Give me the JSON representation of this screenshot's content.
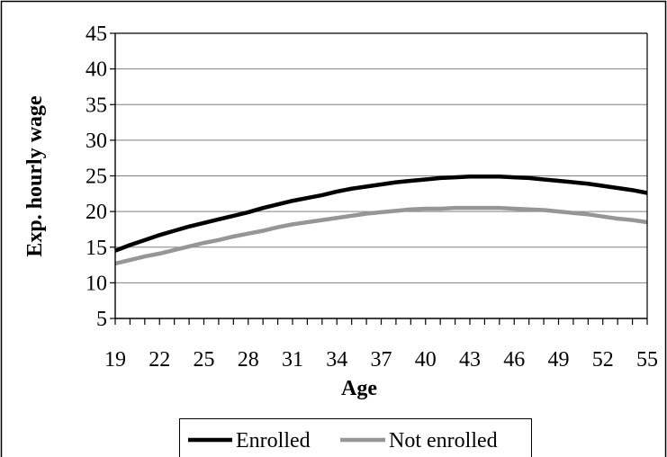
{
  "chart_data": {
    "type": "line",
    "title": "",
    "xlabel": "Age",
    "ylabel": "Exp. hourly wage",
    "ylim": [
      5,
      45
    ],
    "yticks": [
      5,
      10,
      15,
      20,
      25,
      30,
      35,
      40,
      45
    ],
    "xlim": [
      19,
      55
    ],
    "xtick_labels": [
      19,
      22,
      25,
      28,
      31,
      34,
      37,
      40,
      43,
      46,
      49,
      52,
      55
    ],
    "grid": "horizontal",
    "legend_position": "bottom",
    "x": [
      19,
      20,
      21,
      22,
      23,
      24,
      25,
      26,
      27,
      28,
      29,
      30,
      31,
      32,
      33,
      34,
      35,
      36,
      37,
      38,
      39,
      40,
      41,
      42,
      43,
      44,
      45,
      46,
      47,
      48,
      49,
      50,
      51,
      52,
      53,
      54,
      55
    ],
    "series": [
      {
        "name": "Enrolled",
        "color": "#000000",
        "values": [
          14.5,
          15.3,
          16.0,
          16.7,
          17.3,
          17.9,
          18.4,
          18.9,
          19.4,
          19.9,
          20.5,
          21.0,
          21.5,
          21.9,
          22.3,
          22.8,
          23.2,
          23.5,
          23.8,
          24.1,
          24.3,
          24.5,
          24.7,
          24.8,
          24.9,
          24.9,
          24.9,
          24.8,
          24.7,
          24.5,
          24.3,
          24.1,
          23.9,
          23.6,
          23.3,
          23.0,
          22.6
        ]
      },
      {
        "name": "Not enrolled",
        "color": "#969696",
        "values": [
          12.7,
          13.2,
          13.7,
          14.1,
          14.6,
          15.1,
          15.6,
          16.0,
          16.5,
          16.9,
          17.3,
          17.8,
          18.2,
          18.5,
          18.8,
          19.1,
          19.4,
          19.7,
          19.9,
          20.1,
          20.3,
          20.4,
          20.4,
          20.5,
          20.5,
          20.5,
          20.5,
          20.4,
          20.3,
          20.2,
          20.0,
          19.8,
          19.6,
          19.3,
          19.0,
          18.8,
          18.5
        ]
      }
    ]
  }
}
